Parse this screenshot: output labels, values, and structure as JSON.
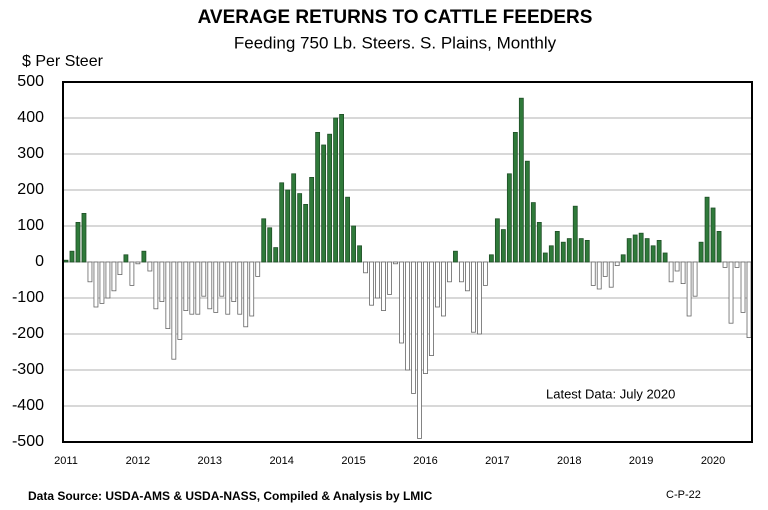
{
  "chart_data": {
    "type": "bar",
    "title": "AVERAGE RETURNS TO CATTLE FEEDERS",
    "subtitle": "Feeding 750 Lb. Steers. S. Plains, Monthly",
    "y_label": "$ Per Steer",
    "annotation": "Latest Data:  July 2020",
    "source": "Data Source:  USDA-AMS & USDA-NASS, Compiled & Analysis by LMIC",
    "chart_id": "C-P-22",
    "categories": [
      "2011",
      null,
      null,
      null,
      null,
      null,
      null,
      null,
      null,
      null,
      null,
      null,
      "2012",
      null,
      null,
      null,
      null,
      null,
      null,
      null,
      null,
      null,
      null,
      null,
      "2013",
      null,
      null,
      null,
      null,
      null,
      null,
      null,
      null,
      null,
      null,
      null,
      "2014",
      null,
      null,
      null,
      null,
      null,
      null,
      null,
      null,
      null,
      null,
      null,
      "2015",
      null,
      null,
      null,
      null,
      null,
      null,
      null,
      null,
      null,
      null,
      null,
      "2016",
      null,
      null,
      null,
      null,
      null,
      null,
      null,
      null,
      null,
      null,
      null,
      "2017",
      null,
      null,
      null,
      null,
      null,
      null,
      null,
      null,
      null,
      null,
      null,
      "2018",
      null,
      null,
      null,
      null,
      null,
      null,
      null,
      null,
      null,
      null,
      null,
      "2019",
      null,
      null,
      null,
      null,
      null,
      null,
      null,
      null,
      null,
      null,
      null,
      "2020",
      null,
      null,
      null,
      null,
      null,
      null
    ],
    "values": [
      5,
      30,
      110,
      135,
      -55,
      -125,
      -115,
      -100,
      -80,
      -35,
      20,
      -65,
      -5,
      30,
      -25,
      -130,
      -110,
      -185,
      -270,
      -215,
      -135,
      -145,
      -145,
      -95,
      -130,
      -140,
      -95,
      -145,
      -110,
      -145,
      -180,
      -150,
      -40,
      120,
      95,
      40,
      220,
      200,
      245,
      190,
      160,
      235,
      360,
      325,
      355,
      400,
      410,
      180,
      100,
      45,
      -30,
      -120,
      -100,
      -135,
      -90,
      -5,
      -225,
      -300,
      -365,
      -490,
      -310,
      -260,
      -125,
      -150,
      -55,
      30,
      -55,
      -80,
      -195,
      -200,
      -65,
      20,
      120,
      90,
      245,
      360,
      455,
      280,
      165,
      110,
      25,
      45,
      85,
      55,
      65,
      155,
      65,
      60,
      -65,
      -75,
      -40,
      -70,
      -10,
      20,
      65,
      75,
      80,
      65,
      45,
      60,
      25,
      -55,
      -25,
      -60,
      -150,
      -95,
      55,
      180,
      150,
      85,
      -15,
      -170,
      -15,
      -140,
      -210
    ],
    "color": "#2f7a3a",
    "negative_color": "#ffffff",
    "ylim": [
      -500,
      500
    ],
    "yticks": [
      -500,
      -400,
      -300,
      -200,
      -100,
      0,
      100,
      200,
      300,
      400,
      500
    ],
    "grid": true
  }
}
